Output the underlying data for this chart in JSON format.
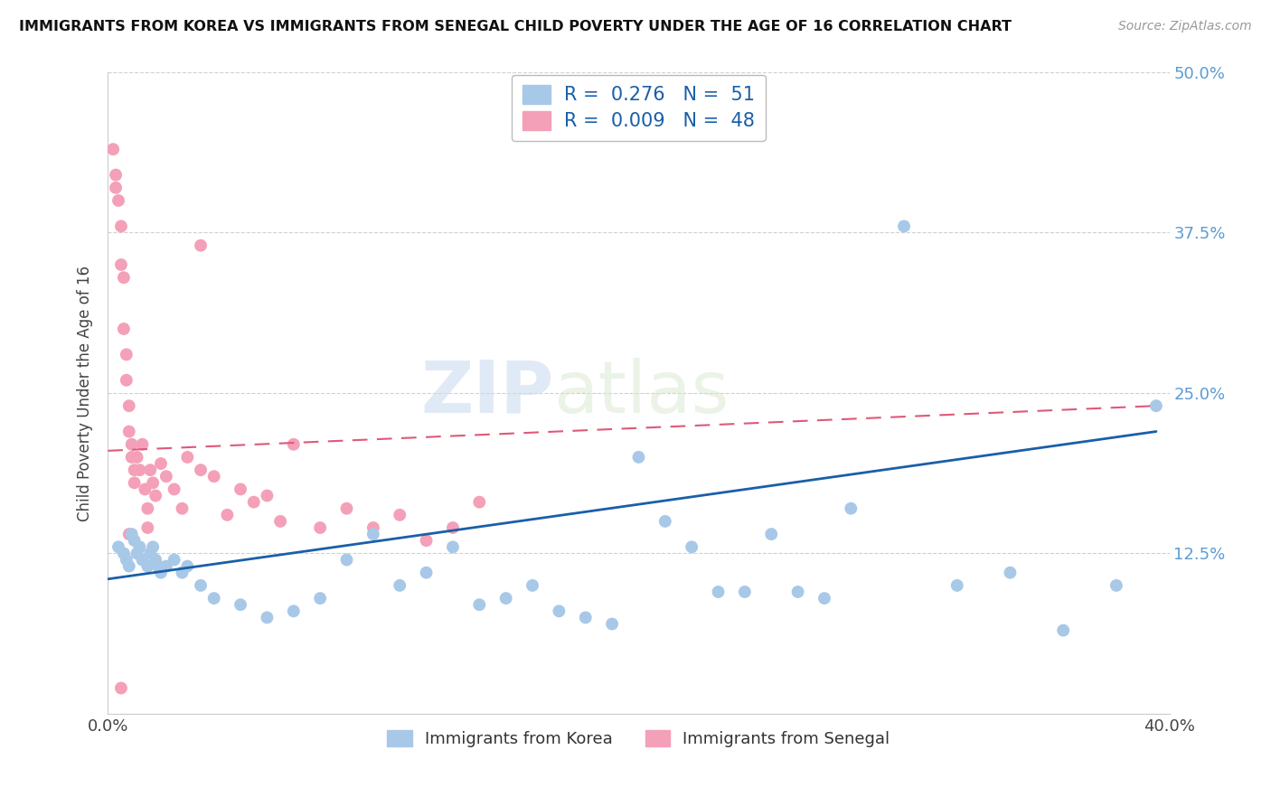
{
  "title": "IMMIGRANTS FROM KOREA VS IMMIGRANTS FROM SENEGAL CHILD POVERTY UNDER THE AGE OF 16 CORRELATION CHART",
  "source": "Source: ZipAtlas.com",
  "ylabel_label": "Child Poverty Under the Age of 16",
  "xlim": [
    0.0,
    0.4
  ],
  "ylim": [
    0.0,
    0.5
  ],
  "xticks": [
    0.0,
    0.1,
    0.2,
    0.3,
    0.4
  ],
  "xticklabels": [
    "0.0%",
    "",
    "",
    "",
    "40.0%"
  ],
  "yticks": [
    0.0,
    0.125,
    0.25,
    0.375,
    0.5
  ],
  "yticklabels": [
    "",
    "12.5%",
    "25.0%",
    "37.5%",
    "50.0%"
  ],
  "korea_color": "#a8c8e8",
  "senegal_color": "#f4a0b8",
  "korea_line_color": "#1a5fa8",
  "senegal_line_color": "#e05878",
  "watermark_zip": "ZIP",
  "watermark_atlas": "atlas",
  "legend_r_korea": "0.276",
  "legend_n_korea": "51",
  "legend_r_senegal": "0.009",
  "legend_n_senegal": "48",
  "korea_scatter_x": [
    0.004,
    0.006,
    0.007,
    0.008,
    0.009,
    0.01,
    0.011,
    0.012,
    0.013,
    0.015,
    0.016,
    0.017,
    0.018,
    0.019,
    0.02,
    0.022,
    0.025,
    0.028,
    0.03,
    0.035,
    0.04,
    0.05,
    0.06,
    0.07,
    0.08,
    0.09,
    0.1,
    0.11,
    0.12,
    0.13,
    0.14,
    0.15,
    0.16,
    0.17,
    0.18,
    0.19,
    0.2,
    0.21,
    0.22,
    0.23,
    0.24,
    0.25,
    0.26,
    0.27,
    0.28,
    0.3,
    0.32,
    0.34,
    0.36,
    0.38,
    0.395
  ],
  "korea_scatter_y": [
    0.13,
    0.125,
    0.12,
    0.115,
    0.14,
    0.135,
    0.125,
    0.13,
    0.12,
    0.115,
    0.125,
    0.13,
    0.12,
    0.115,
    0.11,
    0.115,
    0.12,
    0.11,
    0.115,
    0.1,
    0.09,
    0.085,
    0.075,
    0.08,
    0.09,
    0.12,
    0.14,
    0.1,
    0.11,
    0.13,
    0.085,
    0.09,
    0.1,
    0.08,
    0.075,
    0.07,
    0.2,
    0.15,
    0.13,
    0.095,
    0.095,
    0.14,
    0.095,
    0.09,
    0.16,
    0.38,
    0.1,
    0.11,
    0.065,
    0.1,
    0.24
  ],
  "senegal_scatter_x": [
    0.002,
    0.003,
    0.003,
    0.004,
    0.005,
    0.005,
    0.006,
    0.006,
    0.007,
    0.007,
    0.008,
    0.008,
    0.009,
    0.009,
    0.01,
    0.01,
    0.011,
    0.012,
    0.013,
    0.014,
    0.015,
    0.016,
    0.017,
    0.018,
    0.02,
    0.022,
    0.025,
    0.028,
    0.03,
    0.035,
    0.04,
    0.045,
    0.05,
    0.055,
    0.06,
    0.065,
    0.07,
    0.08,
    0.09,
    0.1,
    0.11,
    0.12,
    0.13,
    0.14,
    0.015,
    0.035,
    0.005,
    0.008
  ],
  "senegal_scatter_y": [
    0.44,
    0.42,
    0.41,
    0.4,
    0.38,
    0.35,
    0.34,
    0.3,
    0.28,
    0.26,
    0.24,
    0.22,
    0.21,
    0.2,
    0.19,
    0.18,
    0.2,
    0.19,
    0.21,
    0.175,
    0.16,
    0.19,
    0.18,
    0.17,
    0.195,
    0.185,
    0.175,
    0.16,
    0.2,
    0.19,
    0.185,
    0.155,
    0.175,
    0.165,
    0.17,
    0.15,
    0.21,
    0.145,
    0.16,
    0.145,
    0.155,
    0.135,
    0.145,
    0.165,
    0.145,
    0.365,
    0.02,
    0.14
  ],
  "korea_line_x": [
    0.0,
    0.395
  ],
  "korea_line_y": [
    0.105,
    0.22
  ],
  "senegal_line_x": [
    0.0,
    0.395
  ],
  "senegal_line_y": [
    0.205,
    0.24
  ],
  "background_color": "#ffffff",
  "grid_color": "#d0d0d0"
}
